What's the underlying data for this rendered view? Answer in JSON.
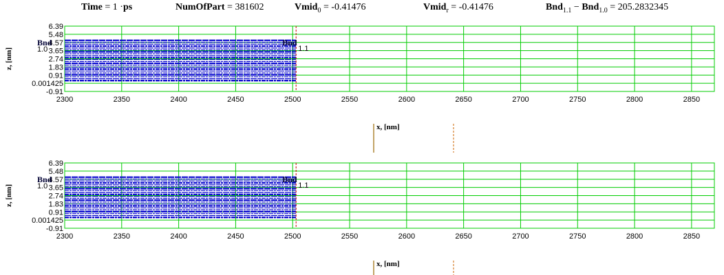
{
  "header": {
    "time_label": "Time",
    "time_value": "1",
    "time_unit": "ps",
    "numofpart_label": "NumOfPart",
    "numofpart_value": "381602",
    "vmid0_label": "Vmid",
    "vmid0_sub": "0",
    "vmid0_value": "-0.41476",
    "vmidr_label": "Vmid",
    "vmidr_sub": "r",
    "vmidr_value": "-0.41476",
    "bnd_a_label": "Bnd",
    "bnd_a_sub": "1.1",
    "bnd_b_label": "Bnd",
    "bnd_b_sub": "1.0",
    "bnd_value": "205.2832345"
  },
  "colors": {
    "grid": "#00cc00",
    "particles": "#0000cc",
    "boundary": "#cc0000",
    "xaxis_marker": "#996600",
    "xaxis_marker_dashed": "#cc6600"
  },
  "chart_data": [
    {
      "type": "scatter",
      "title": "",
      "xlabel": "x, [nm]",
      "ylabel": "z, [nm]",
      "x_ticks": [
        "2300",
        "2350",
        "2400",
        "2450",
        "2500",
        "2550",
        "2600",
        "2650",
        "2700",
        "2750",
        "2800",
        "2850"
      ],
      "y_ticks": [
        "6.39",
        "5.48",
        "4.57",
        "3.65",
        "2.74",
        "1.83",
        "0.91",
        "0.001425",
        "-0.91"
      ],
      "xlim": [
        2300,
        2870
      ],
      "ylim": [
        -0.91,
        6.39
      ],
      "grid": true,
      "particle_region": {
        "x": [
          2300,
          2503
        ],
        "z": [
          0.3,
          4.8
        ]
      },
      "boundary_x": 2503,
      "annotations": [
        {
          "label": "Bnd",
          "sub": "1.0"
        },
        {
          "label": "Bnd",
          "sub": "1.1"
        }
      ]
    },
    {
      "type": "scatter",
      "title": "",
      "xlabel": "x, [nm]",
      "ylabel": "z, [nm]",
      "x_ticks": [
        "2300",
        "2350",
        "2400",
        "2450",
        "2500",
        "2550",
        "2600",
        "2650",
        "2700",
        "2750",
        "2800",
        "2850"
      ],
      "y_ticks": [
        "6.39",
        "5.48",
        "4.57",
        "3.65",
        "2.74",
        "1.83",
        "0.91",
        "0.001425",
        "-0.91"
      ],
      "xlim": [
        2300,
        2870
      ],
      "ylim": [
        -0.91,
        6.39
      ],
      "grid": true,
      "particle_region": {
        "x": [
          2300,
          2503
        ],
        "z": [
          0.3,
          4.8
        ]
      },
      "boundary_x": 2503,
      "annotations": [
        {
          "label": "Bnd",
          "sub": "1.0"
        },
        {
          "label": "Bnd",
          "sub": "1.1"
        }
      ]
    }
  ]
}
